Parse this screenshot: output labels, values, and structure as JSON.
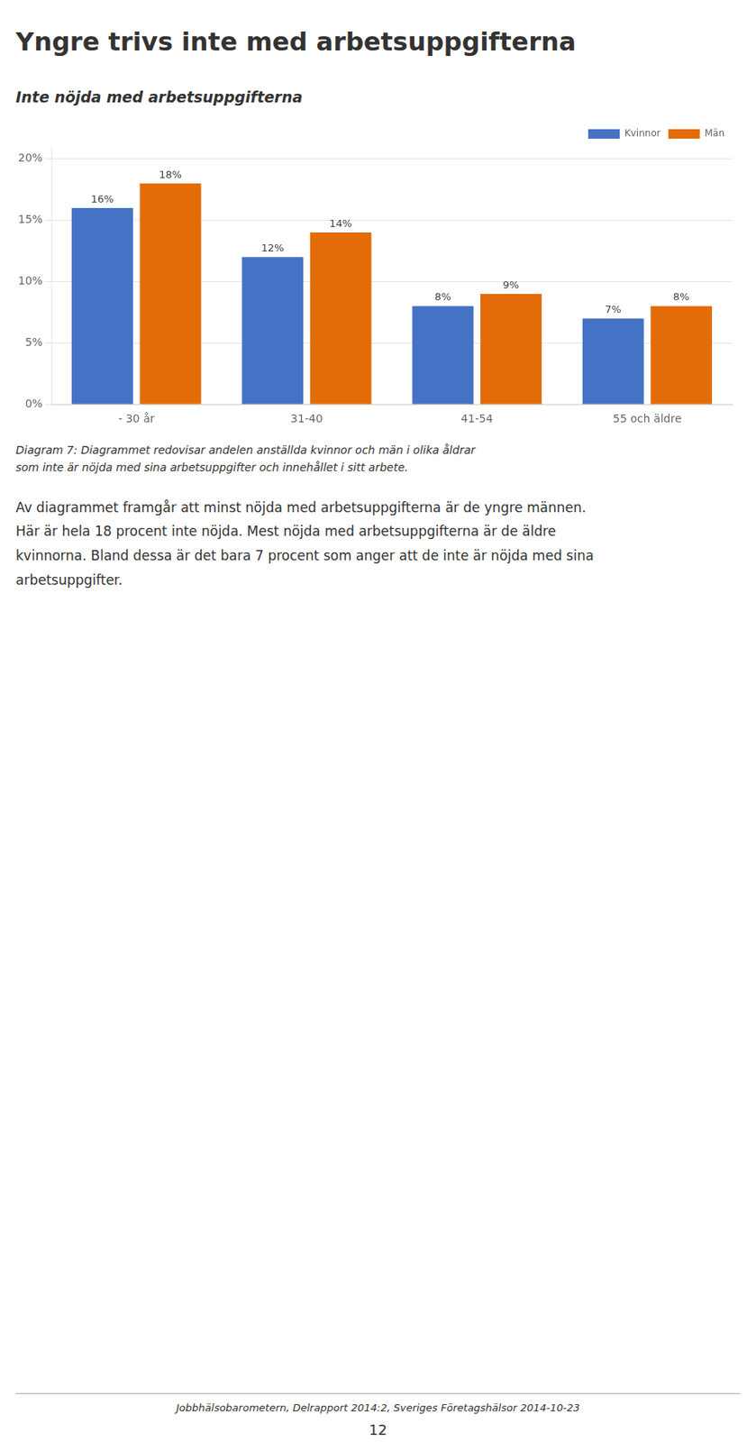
{
  "chart_data": {
    "type": "bar",
    "title": "Yngre trivs inte med arbetsuppgifterna",
    "subtitle": "Inte nöjda med arbetsuppgifterna",
    "categories": [
      "- 30 år",
      "31-40",
      "41-54",
      "55 och äldre"
    ],
    "series": [
      {
        "name": "Kvinnor",
        "color": "#4472C4",
        "values": [
          0.16,
          0.12,
          0.08,
          0.07
        ],
        "value_labels": [
          "16%",
          "12%",
          "8%",
          "7%"
        ]
      },
      {
        "name": "Män",
        "color": "#E36C09",
        "values": [
          0.18,
          0.14,
          0.09,
          0.08
        ],
        "value_labels": [
          "18%",
          "14%",
          "9%",
          "8%"
        ]
      }
    ],
    "ylim": [
      0,
      0.21
    ],
    "yticks": [
      {
        "value": 0.0,
        "label": "0%"
      },
      {
        "value": 0.05,
        "label": "5%"
      },
      {
        "value": 0.1,
        "label": "10%"
      },
      {
        "value": 0.15,
        "label": "15%"
      },
      {
        "value": 0.2,
        "label": "20%"
      }
    ],
    "grid": true,
    "legend": "upper right",
    "data_labels": true,
    "caption": [
      "Diagram 7: Diagrammet redovisar andelen anställda kvinnor och män i olika åldrar",
      "som inte är nöjda med sina arbetsuppgifter och innehållet i sitt arbete."
    ],
    "body": [
      "Av diagrammet framgår att minst nöjda med arbetsuppgifterna är de yngre männen.",
      "Här är hela 18 procent inte nöjda. Mest nöjda med arbetsuppgifterna är de äldre",
      "kvinnorna. Bland dessa är det bara 7 procent som anger att de inte är nöjda med sina",
      "arbetsuppgifter."
    ],
    "footer": "Jobbhälsobarometern, Delrapport 2014:2, Sveriges Företagshälsor 2014-10-23",
    "page_number": "12"
  }
}
